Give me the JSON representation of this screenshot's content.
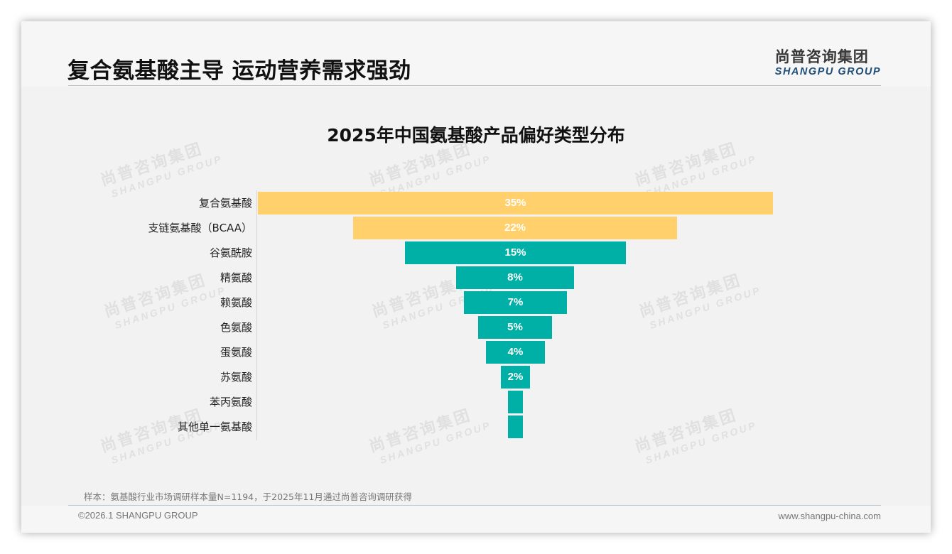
{
  "slide": {
    "title": "复合氨基酸主导 运动营养需求强劲",
    "logo": {
      "cn": "尚普咨询集团",
      "en": "SHANGPU GROUP"
    },
    "note": "样本：氨基酸行业市场调研样本量N=1194，于2025年11月通过尚普咨询调研获得",
    "copyright": "©2026.1 SHANGPU GROUP",
    "website": "www.shangpu-china.com",
    "watermark": {
      "cn": "尚普咨询集团",
      "en": "SHANGPU GROUP"
    }
  },
  "colors": {
    "highlight": "#ffd06b",
    "primary": "#00b0a6",
    "background": "#f2f2f2"
  },
  "chart_data": {
    "type": "bar",
    "subtype": "funnel (centered horizontal bars)",
    "title": "2025年中国氨基酸产品偏好类型分布",
    "xlabel": "",
    "ylabel": "",
    "unit": "%",
    "grid": false,
    "legend": null,
    "categories": [
      "复合氨基酸",
      "支链氨基酸（BCAA）",
      "谷氨酰胺",
      "精氨酸",
      "赖氨酸",
      "色氨酸",
      "蛋氨酸",
      "苏氨酸",
      "苯丙氨酸",
      "其他单一氨基酸"
    ],
    "values": [
      35,
      22,
      15,
      8,
      7,
      5,
      4,
      2,
      1,
      1
    ],
    "labels": [
      "35%",
      "22%",
      "15%",
      "8%",
      "7%",
      "5%",
      "4%",
      "2%",
      "",
      ""
    ],
    "bar_colors": [
      "#ffd06b",
      "#ffd06b",
      "#00b0a6",
      "#00b0a6",
      "#00b0a6",
      "#00b0a6",
      "#00b0a6",
      "#00b0a6",
      "#00b0a6",
      "#00b0a6"
    ],
    "note": "Last two categories are shown without data labels (small share, approx 1%)"
  }
}
